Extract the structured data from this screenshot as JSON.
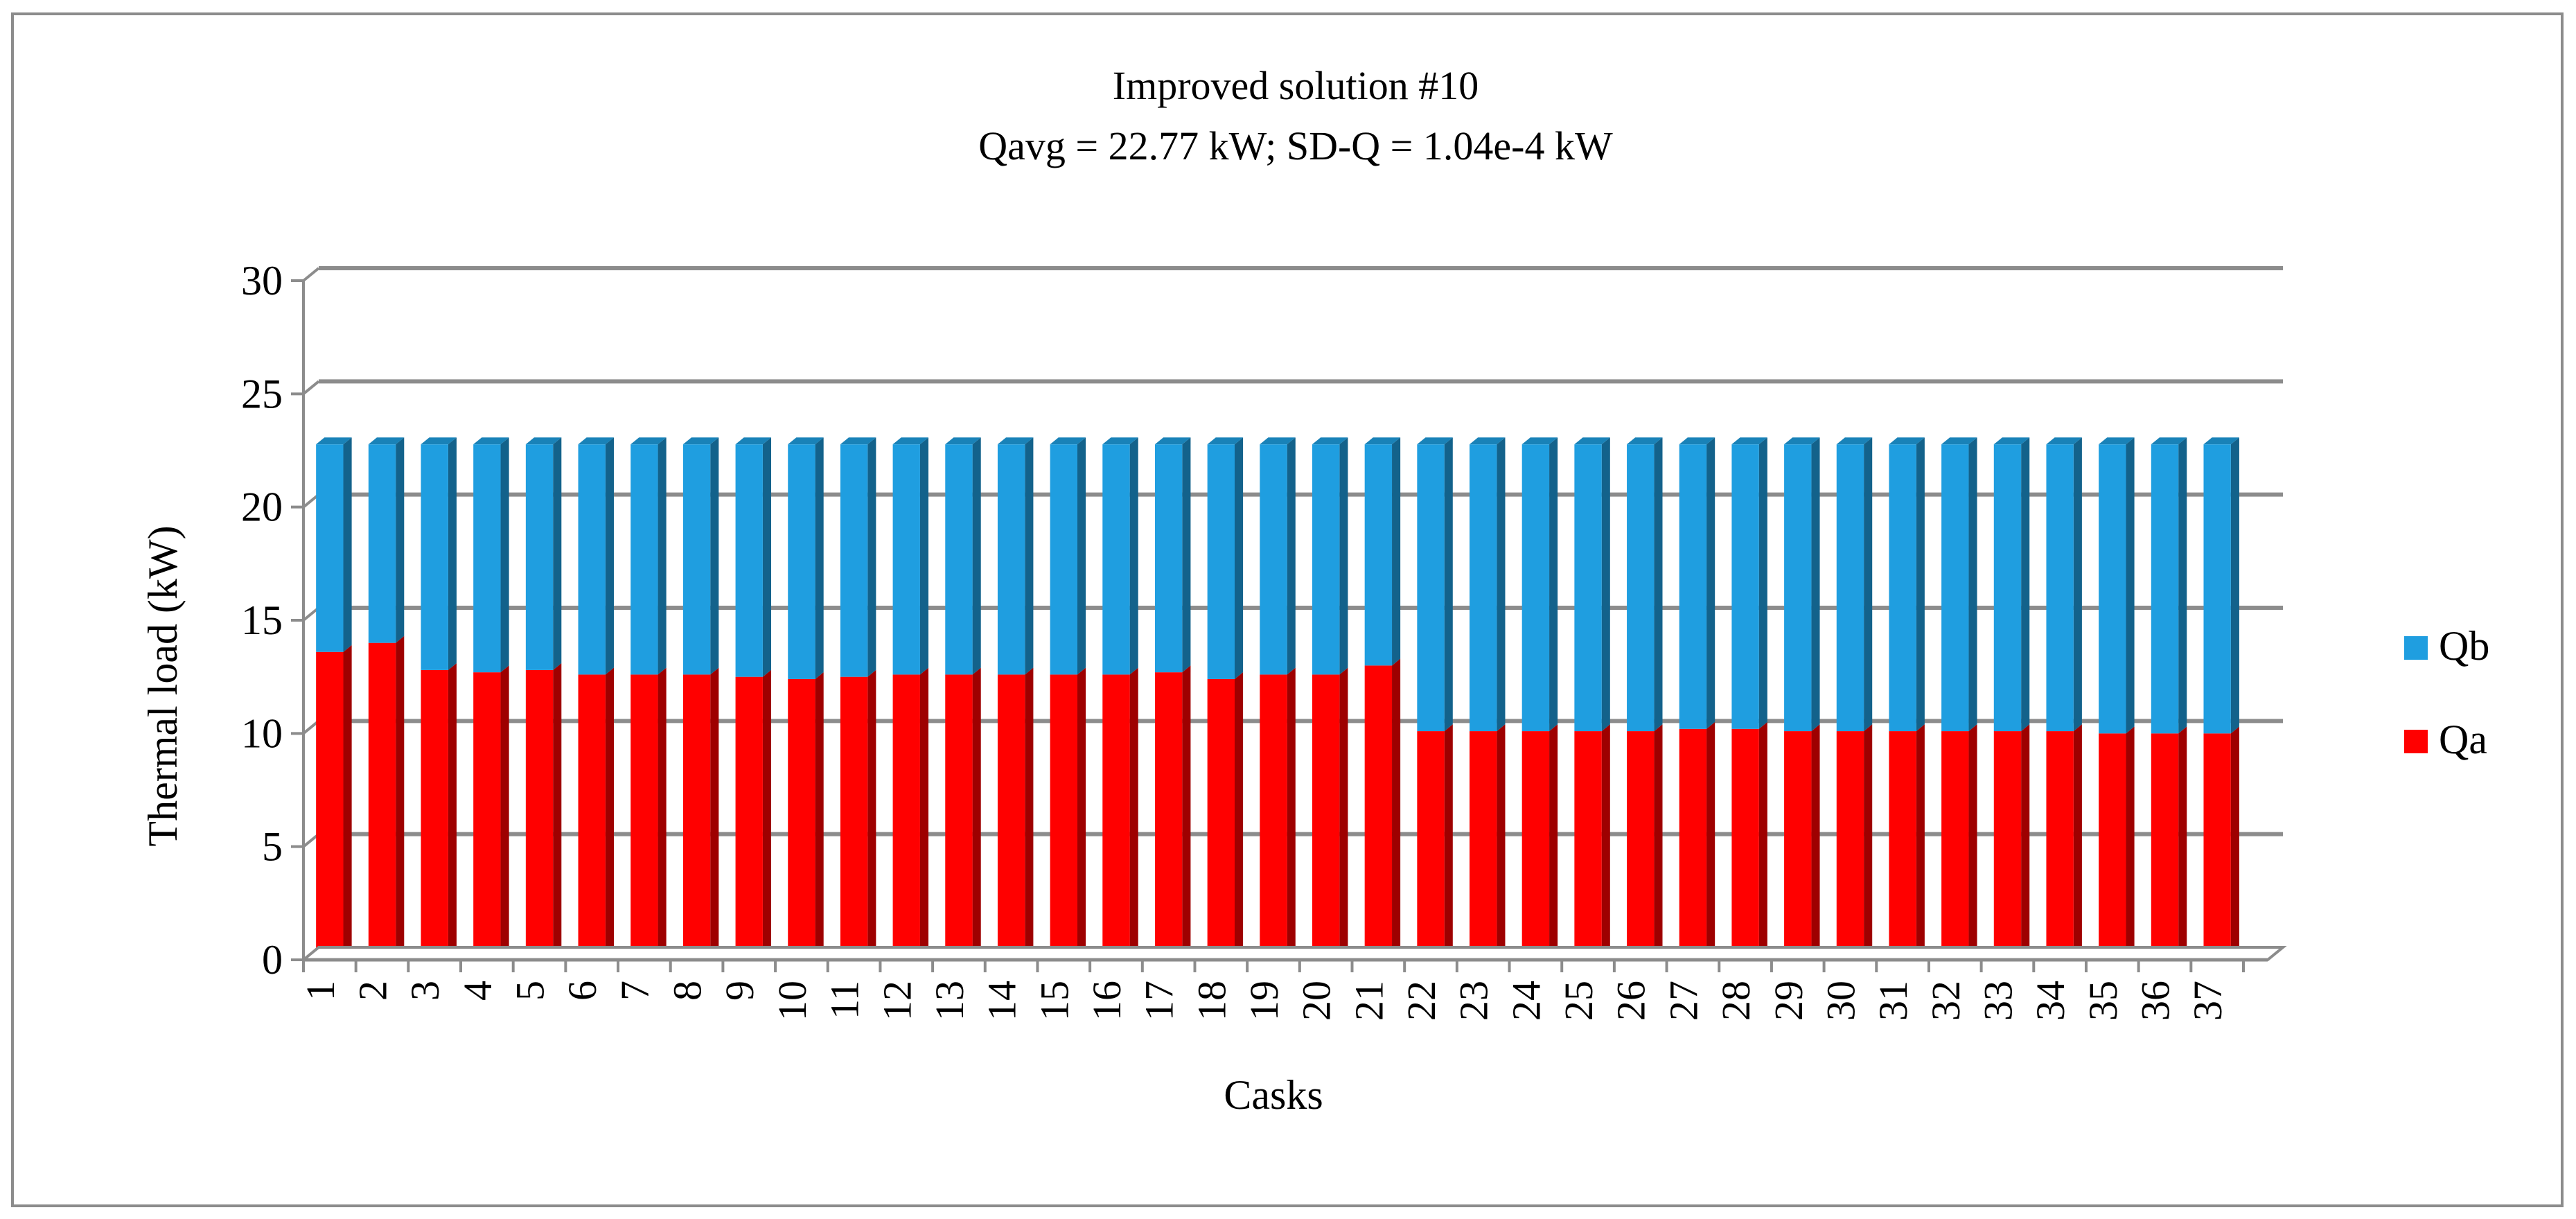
{
  "chart_data": {
    "type": "bar",
    "stacked": true,
    "title": "Improved solution #10",
    "subtitle": "Qavg = 22.77 kW; SD-Q = 1.04e-4 kW",
    "xlabel": "Casks",
    "ylabel": "Thermal load (kW)",
    "ylim": [
      0,
      30
    ],
    "yticks": [
      0,
      5,
      10,
      15,
      20,
      25,
      30
    ],
    "grid": true,
    "legend_position": "right",
    "total": 22.77,
    "categories": [
      "1",
      "2",
      "3",
      "4",
      "5",
      "6",
      "7",
      "8",
      "9",
      "10",
      "11",
      "12",
      "13",
      "14",
      "15",
      "16",
      "17",
      "18",
      "19",
      "20",
      "21",
      "22",
      "23",
      "24",
      "25",
      "26",
      "27",
      "28",
      "29",
      "30",
      "31",
      "32",
      "33",
      "34",
      "35",
      "36",
      "37"
    ],
    "series": [
      {
        "name": "Qa",
        "color": "#ff0000",
        "values": [
          13.6,
          14.0,
          12.8,
          12.7,
          12.8,
          12.6,
          12.6,
          12.6,
          12.5,
          12.4,
          12.5,
          12.6,
          12.6,
          12.6,
          12.6,
          12.6,
          12.7,
          12.4,
          12.6,
          12.6,
          13.0,
          10.1,
          10.1,
          10.1,
          10.1,
          10.1,
          10.2,
          10.2,
          10.1,
          10.1,
          10.1,
          10.1,
          10.1,
          10.1,
          10.0,
          10.0,
          10.0
        ]
      },
      {
        "name": "Qb",
        "color": "#1f9ee0",
        "values": [
          9.17,
          8.77,
          9.97,
          10.07,
          9.97,
          10.17,
          10.17,
          10.17,
          10.27,
          10.37,
          10.27,
          10.17,
          10.17,
          10.17,
          10.17,
          10.17,
          10.07,
          10.37,
          10.17,
          10.17,
          9.77,
          12.67,
          12.67,
          12.67,
          12.67,
          12.67,
          12.57,
          12.57,
          12.67,
          12.67,
          12.67,
          12.67,
          12.67,
          12.67,
          12.77,
          12.77,
          12.77
        ]
      }
    ],
    "legend": [
      {
        "name": "Qb",
        "color": "#1f9ee0"
      },
      {
        "name": "Qa",
        "color": "#ff0000"
      }
    ]
  }
}
